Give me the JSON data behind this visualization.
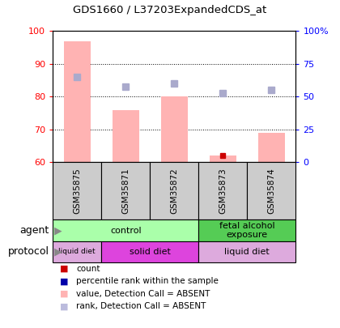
{
  "title": "GDS1660 / L37203ExpandedCDS_at",
  "samples": [
    "GSM35875",
    "GSM35871",
    "GSM35872",
    "GSM35873",
    "GSM35874"
  ],
  "bar_values": [
    97,
    76,
    80,
    62,
    69
  ],
  "rank_values": [
    86,
    83,
    84,
    81,
    82
  ],
  "count_values": [
    null,
    null,
    null,
    62,
    null
  ],
  "ylim_left": [
    60,
    100
  ],
  "ylim_right": [
    0,
    100
  ],
  "yticks_left": [
    60,
    70,
    80,
    90,
    100
  ],
  "yticks_right": [
    0,
    25,
    50,
    75,
    100
  ],
  "yticklabels_right": [
    "0",
    "25",
    "50",
    "75",
    "100%"
  ],
  "bar_color": "#ffb3b3",
  "rank_color": "#aaaacc",
  "count_color": "#cc0000",
  "blue_marker_color": "#0000aa",
  "agent_groups": [
    {
      "label": "control",
      "color": "#aaffaa",
      "start": 0,
      "end": 3
    },
    {
      "label": "fetal alcohol\nexposure",
      "color": "#55cc55",
      "start": 3,
      "end": 5
    }
  ],
  "protocol_groups": [
    {
      "label": "liquid diet",
      "color": "#ddaadd",
      "start": 0,
      "end": 1
    },
    {
      "label": "solid diet",
      "color": "#dd44dd",
      "start": 1,
      "end": 3
    },
    {
      "label": "liquid diet",
      "color": "#ddaadd",
      "start": 3,
      "end": 5
    }
  ],
  "legend_items": [
    {
      "color": "#cc0000",
      "label": "count"
    },
    {
      "color": "#0000aa",
      "label": "percentile rank within the sample"
    },
    {
      "color": "#ffb3b3",
      "label": "value, Detection Call = ABSENT"
    },
    {
      "color": "#bbbbdd",
      "label": "rank, Detection Call = ABSENT"
    }
  ]
}
